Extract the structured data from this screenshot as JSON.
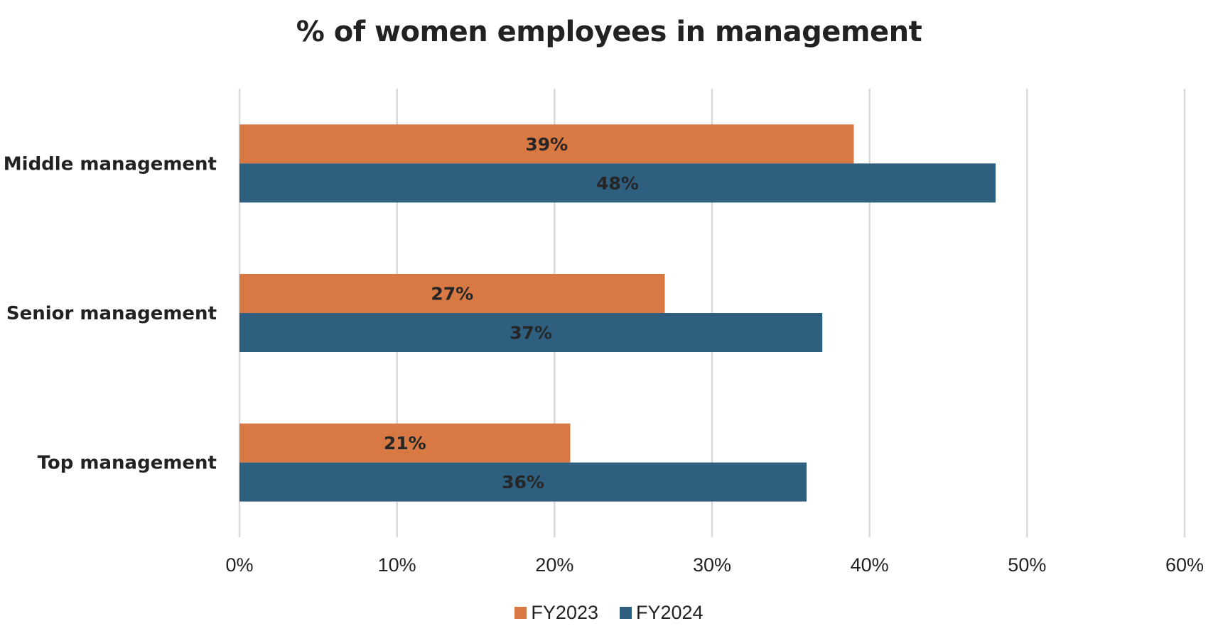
{
  "chart_data": {
    "type": "bar",
    "orientation": "horizontal",
    "title": "% of women employees in management",
    "categories": [
      "Middle management",
      "Senior management",
      "Top management"
    ],
    "series": [
      {
        "name": "FY2023",
        "values": [
          39,
          27,
          21
        ],
        "color": "#D87842"
      },
      {
        "name": "FY2024",
        "values": [
          48,
          37,
          36
        ],
        "color": "#2E5F7F"
      }
    ],
    "data_labels": {
      "FY2023": [
        "39%",
        "27%",
        "21%"
      ],
      "FY2024": [
        "48%",
        "37%",
        "36%"
      ]
    },
    "xlim": [
      0,
      60
    ],
    "xticks": [
      0,
      10,
      20,
      30,
      40,
      50,
      60
    ],
    "xtick_labels": [
      "0%",
      "10%",
      "20%",
      "30%",
      "40%",
      "50%",
      "60%"
    ],
    "grid": true,
    "gridline_color": "#d9d9d9",
    "legend_position": "bottom"
  }
}
